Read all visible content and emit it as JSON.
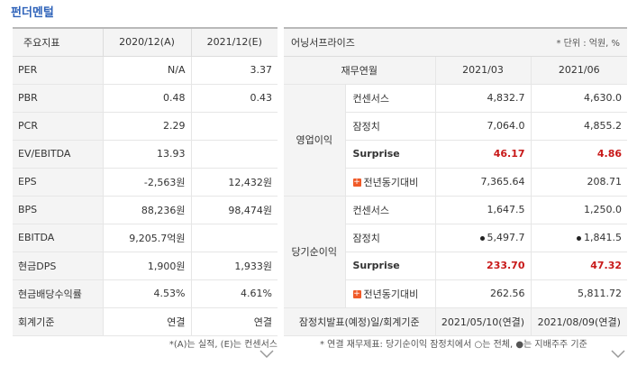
{
  "title": "펀더멘털",
  "left": {
    "headers": [
      "주요지표",
      "2020/12(A)",
      "2021/12(E)"
    ],
    "rows": [
      [
        "PER",
        "N/A",
        "3.37"
      ],
      [
        "PBR",
        "0.48",
        "0.43"
      ],
      [
        "PCR",
        "2.29",
        ""
      ],
      [
        "EV/EBITDA",
        "13.93",
        ""
      ],
      [
        "EPS",
        "-2,563원",
        "12,432원"
      ],
      [
        "BPS",
        "88,236원",
        "98,474원"
      ],
      [
        "EBITDA",
        "9,205.7억원",
        ""
      ],
      [
        "현금DPS",
        "1,900원",
        "1,933원"
      ],
      [
        "현금배당수익률",
        "4.53%",
        "4.61%"
      ],
      [
        "회계기준",
        "연결",
        "연결"
      ]
    ],
    "note": "*(A)는 실적, (E)는 컨센서스"
  },
  "right": {
    "company": "어닝서프라이즈",
    "unit": "* 단위 : 억원, %",
    "sub_headers": [
      "재무연월",
      "2021/03",
      "2021/06"
    ],
    "groups": [
      {
        "name": "영업이익",
        "rows": [
          {
            "label": "컨센서스",
            "v1": "4,832.7",
            "v2": "4,630.0"
          },
          {
            "label": "잠정치",
            "v1": "7,064.0",
            "v2": "4,855.2"
          },
          {
            "label": "Surprise",
            "v1": "46.17",
            "v2": "4.86"
          },
          {
            "label": "전년동기대비",
            "v1": "7,365.64",
            "v2": "208.71"
          }
        ]
      },
      {
        "name": "당기순이익",
        "rows": [
          {
            "label": "컨센서스",
            "v1": "1,647.5",
            "v2": "1,250.0"
          },
          {
            "label": "잠정치",
            "v1": "5,497.7",
            "v2": "1,841.5"
          },
          {
            "label": "Surprise",
            "v1": "233.70",
            "v2": "47.32"
          },
          {
            "label": "전년동기대비",
            "v1": "262.56",
            "v2": "5,811.72"
          }
        ]
      }
    ],
    "footer": [
      "잠정치발표(예정)일/회계기준",
      "2021/05/10(연결)",
      "2021/08/09(연결)"
    ],
    "note": "* 연결 재무제표: 당기순이익 잠정치에서 ○는 전체, ●는 지배주주 기준"
  },
  "colors": {
    "title": "#2e62b9",
    "surprise": "#c81919",
    "plus": "#f05a28"
  }
}
